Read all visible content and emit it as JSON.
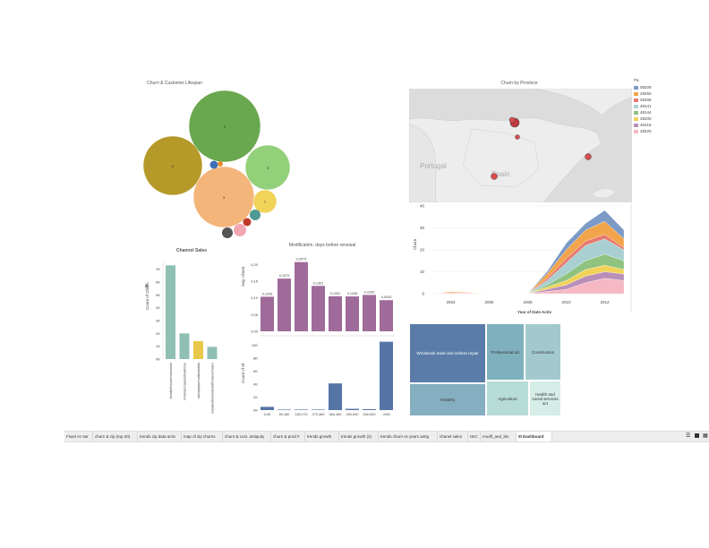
{
  "bubble": {
    "title": "Churn & Customer Lifespan",
    "bubbles": [
      {
        "label": "2",
        "color": "#6aa84f"
      },
      {
        "label": "6",
        "color": "#b59a2a"
      },
      {
        "label": "5",
        "color": "#93d07a"
      },
      {
        "label": "3",
        "color": "#f3b57a"
      },
      {
        "label": "7",
        "color": "#f1d35a"
      },
      {
        "label": "",
        "color": "#3d6fb6"
      },
      {
        "label": "",
        "color": "#f08b2e"
      },
      {
        "label": "",
        "color": "#4f9a93"
      },
      {
        "label": "",
        "color": "#c0392b"
      },
      {
        "label": "",
        "color": "#f2a6b2"
      },
      {
        "label": "",
        "color": "#555555"
      }
    ]
  },
  "map": {
    "title": "Churn by Province",
    "labels": {
      "portugal": "Portugal",
      "spain": "Spain"
    },
    "legend_title": "Pa",
    "legend": [
      {
        "code": "08209",
        "color": "#7b9ac6"
      },
      {
        "code": "28260",
        "color": "#f2a44a"
      },
      {
        "code": "28499",
        "color": "#e8786d"
      },
      {
        "code": "48141",
        "color": "#a9cfd0"
      },
      {
        "code": "48144",
        "color": "#8fc27e"
      },
      {
        "code": "48200",
        "color": "#f1d35a"
      },
      {
        "code": "46216",
        "color": "#b98fb8"
      },
      {
        "code": "48220",
        "color": "#f6b8c4"
      }
    ]
  },
  "area": {
    "ylabel": "Churn",
    "xlabel": "Year of Date Activ",
    "yticks": [
      "0",
      "10",
      "20",
      "30",
      "40"
    ],
    "xticks": [
      "2004",
      "2006",
      "2008",
      "2010",
      "2012"
    ]
  },
  "channel": {
    "title": "Channel Sales",
    "ylabel": "Count of Churn",
    "filter_icon": "filter-icon",
    "yticks": [
      "0K",
      "1K",
      "2K",
      "3K",
      "4K",
      "5K",
      "6K",
      "7K"
    ],
    "categories": [
      "foosdfpfkusacimwkcsosbi",
      "lmkebamcaaclubfxadlmue",
      "usilxuppasemubllopkaafa",
      "ewpakwlliwisiwduibdlfmalxowmwpci"
    ],
    "colors": [
      "#8fbfb3",
      "#8fbfb3",
      "#e8c84a",
      "#8fbfb3"
    ]
  },
  "modif": {
    "title": "Modification, days before renewal",
    "top_ylabel": "Avg. Churn",
    "top_yticks": [
      "0,00",
      "0,05",
      "0,10",
      "0,15",
      "0,20"
    ],
    "bottom_ylabel": "Count of Id",
    "bottom_yticks": [
      "0K",
      "2K",
      "4K",
      "6K",
      "8K",
      "10K"
    ],
    "categories": [
      "0-90",
      "90-180",
      "180-270",
      "270-360",
      "360-450",
      "450-540",
      "540-630",
      ">630"
    ],
    "top_labels": [
      "0,1036",
      "0,1579",
      "0,2075",
      "0,1361",
      "0,1051",
      "0,1045",
      "0,1090",
      "0,0933"
    ]
  },
  "treemap": {
    "cells": [
      {
        "label": "Wholesale trade and vehicle repair",
        "color": "#5b7ca8",
        "text": "#ffffff"
      },
      {
        "label": "Hostelry",
        "color": "#86aec1",
        "text": "#222222"
      },
      {
        "label": "Professional act",
        "color": "#7fb0bd",
        "text": "#222222"
      },
      {
        "label": "Construction",
        "color": "#a3c9cf",
        "text": "#222222"
      },
      {
        "label": "Agriculture",
        "color": "#b7dbd6",
        "text": "#222222"
      },
      {
        "label": "Health and social services act",
        "color": "#d5ece7",
        "text": "#222222"
      }
    ]
  },
  "tabs": [
    {
      "label": "Fixed vs Var"
    },
    {
      "label": "churn & zip (top 20)"
    },
    {
      "label": "trends zip data activ"
    },
    {
      "label": "map of zip churns"
    },
    {
      "label": "churn & cust. antiquity"
    },
    {
      "label": "churn & prod #"
    },
    {
      "label": "trends growth"
    },
    {
      "label": "trends growth (2)"
    },
    {
      "label": "trends churn vs years antig"
    },
    {
      "label": "chanel sales"
    },
    {
      "label": "ISIC"
    },
    {
      "label": "modif_and_bin"
    },
    {
      "label": "Dashboard"
    }
  ],
  "chart_data": [
    {
      "type": "bar",
      "title": "Channel Sales",
      "ylabel": "Count of Churn",
      "categories": [
        "foosdfpfkusacimwkcsosbi",
        "lmkebamcaaclubfxadlmue",
        "usilxuppasemubllopkaafa",
        "ewpakwlliwisiwduibdlfmalxowmwpci"
      ],
      "values": [
        7300,
        2000,
        1400,
        950
      ],
      "ylim": [
        0,
        7600
      ]
    },
    {
      "type": "bar",
      "title": "Modification, days before renewal",
      "ylabel": "Avg. Churn",
      "categories": [
        "0-90",
        "90-180",
        "180-270",
        "270-360",
        "360-450",
        "450-540",
        "540-630",
        ">630"
      ],
      "values": [
        0.1036,
        0.1579,
        0.2075,
        0.1361,
        0.1051,
        0.1045,
        0.109,
        0.0933
      ],
      "ylim": [
        0,
        0.22
      ]
    },
    {
      "type": "bar",
      "ylabel": "Count of Id",
      "categories": [
        "0-90",
        "90-180",
        "180-270",
        "270-360",
        "360-450",
        "450-540",
        "540-630",
        ">630"
      ],
      "values": [
        500,
        40,
        60,
        80,
        4100,
        200,
        150,
        10500
      ],
      "ylim": [
        0,
        11000
      ]
    },
    {
      "type": "area",
      "xlabel": "Year of Date Activ",
      "ylabel": "Churn",
      "x": [
        2003,
        2004,
        2005,
        2006,
        2007,
        2008,
        2009,
        2010,
        2011,
        2012,
        2013
      ],
      "ylim": [
        0,
        40
      ],
      "series": [
        {
          "name": "48220",
          "color": "#f6b8c4",
          "values": [
            0,
            0.5,
            0.3,
            0,
            0,
            0,
            1,
            2,
            5,
            7,
            6
          ]
        },
        {
          "name": "46216",
          "color": "#b98fb8",
          "values": [
            0,
            0,
            0,
            0,
            0,
            0,
            1,
            2,
            3,
            3,
            3
          ]
        },
        {
          "name": "48200",
          "color": "#f1d35a",
          "values": [
            0,
            0,
            0,
            0,
            0,
            0,
            1,
            2,
            3,
            3,
            2
          ]
        },
        {
          "name": "48144",
          "color": "#8fc27e",
          "values": [
            0,
            0,
            0,
            0,
            0,
            0,
            1,
            3,
            4,
            5,
            4
          ]
        },
        {
          "name": "48141",
          "color": "#a9cfd0",
          "values": [
            0,
            0,
            0,
            0,
            0,
            0,
            2,
            5,
            7,
            7,
            5
          ]
        },
        {
          "name": "28499",
          "color": "#e8786d",
          "values": [
            0,
            0,
            0,
            0,
            0,
            0,
            1,
            2,
            2,
            2,
            1
          ]
        },
        {
          "name": "28260",
          "color": "#f2a44a",
          "values": [
            0,
            0.5,
            0.3,
            0,
            0,
            0,
            2,
            4,
            5,
            6,
            4
          ]
        },
        {
          "name": "08209",
          "color": "#7b9ac6",
          "values": [
            0,
            0,
            0,
            0,
            0,
            0,
            1,
            3,
            3,
            5,
            4
          ]
        }
      ]
    }
  ]
}
